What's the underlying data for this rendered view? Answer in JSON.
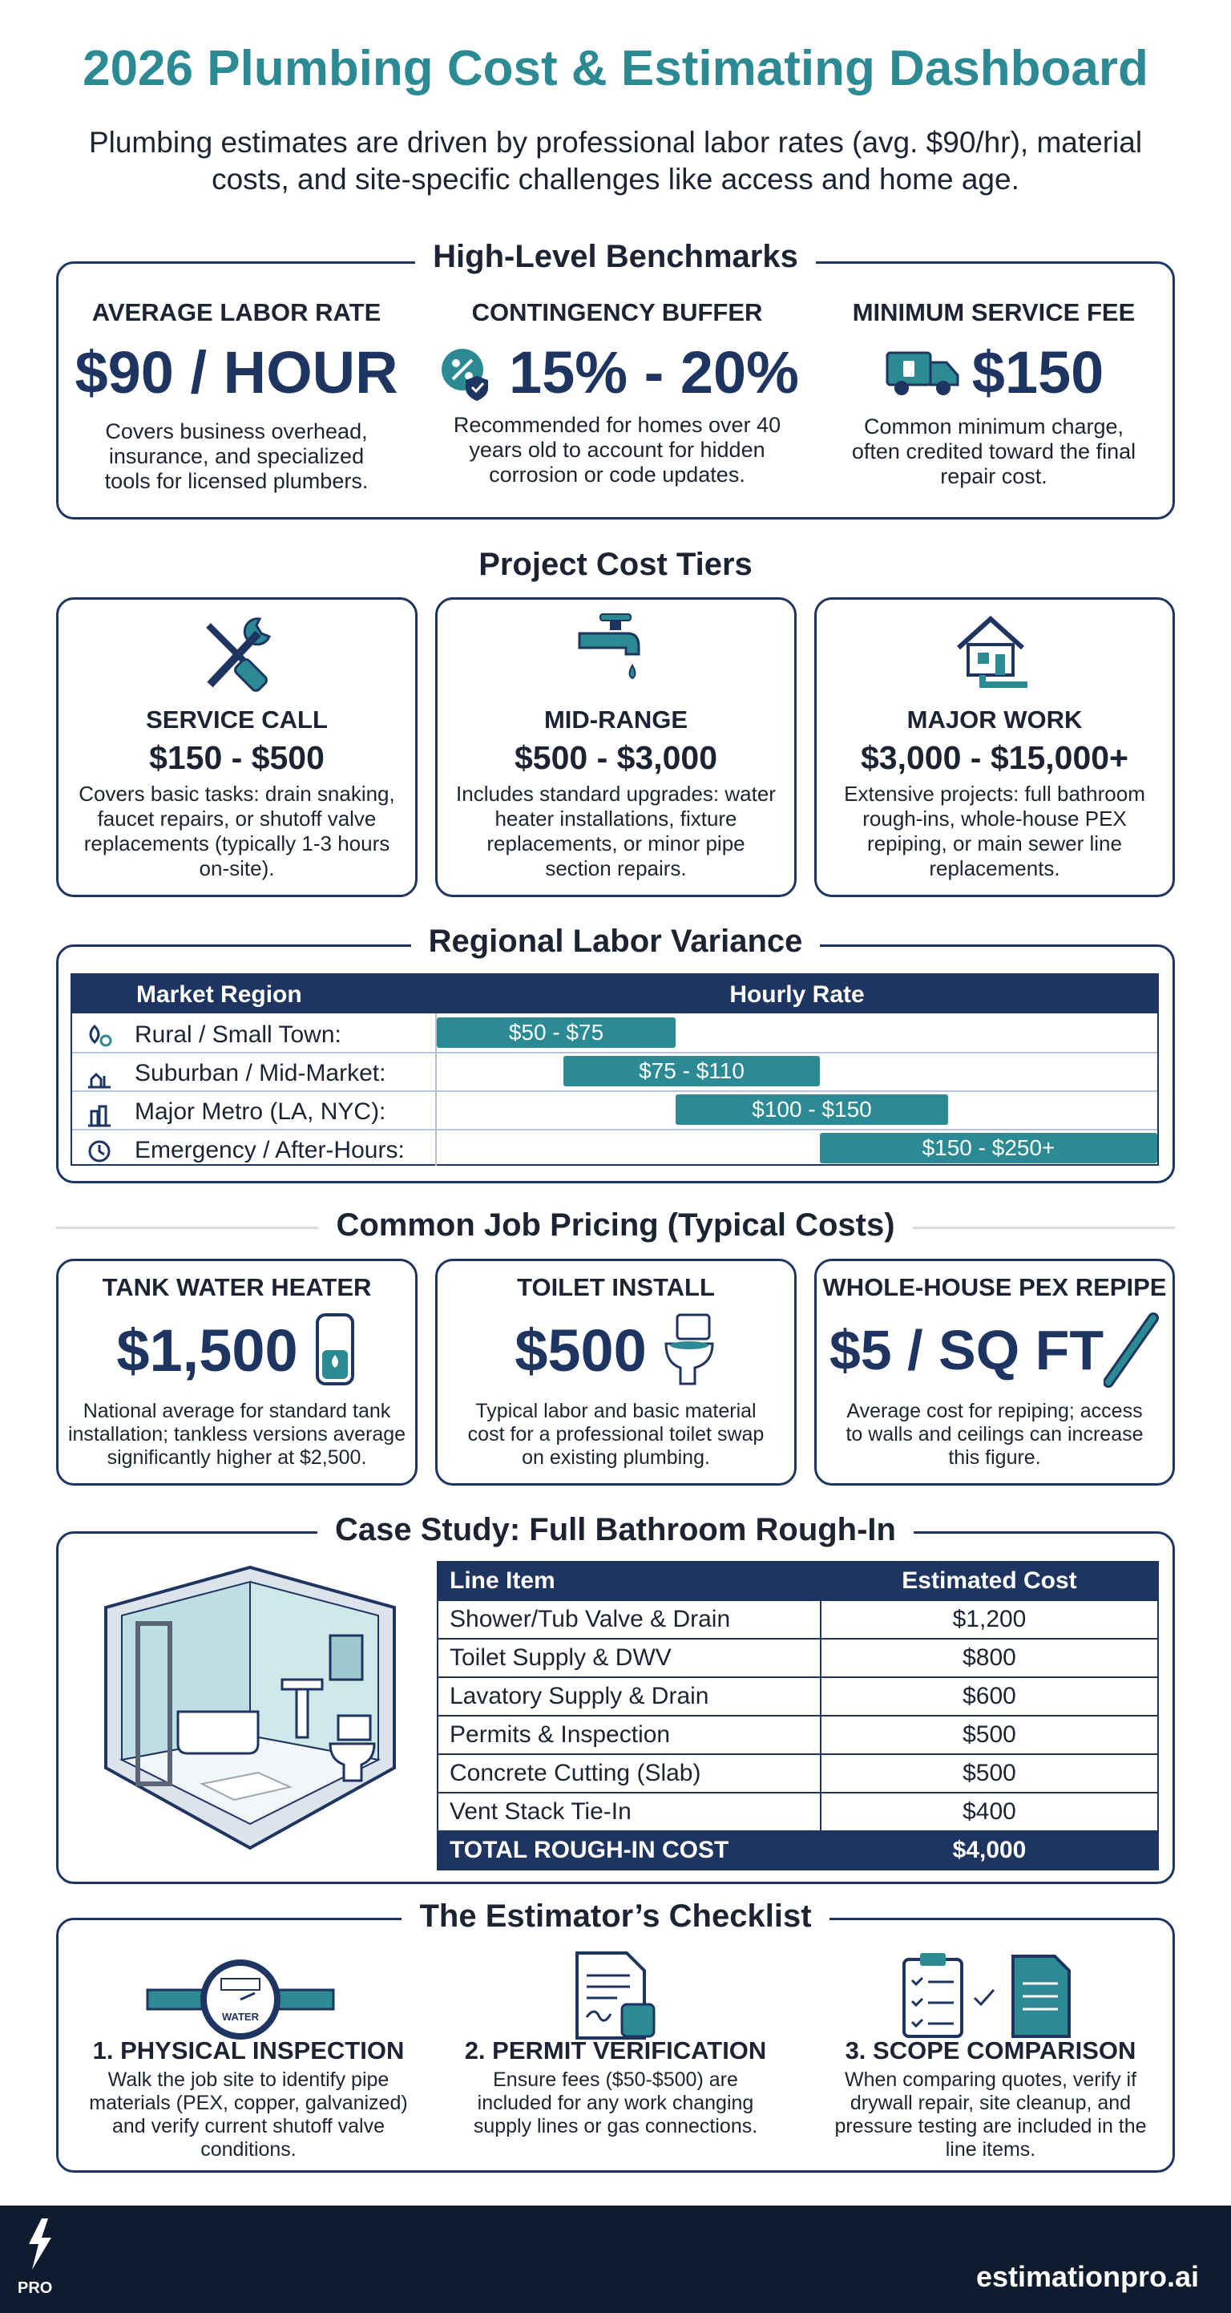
{
  "header": {
    "title": "2026 Plumbing Cost & Estimating Dashboard",
    "subtitle": "Plumbing estimates are driven by professional labor rates (avg. $90/hr), material costs, and site-specific challenges like access and home age."
  },
  "benchmarks": {
    "heading": "High-Level Benchmarks",
    "cards": [
      {
        "label": "AVERAGE LABOR RATE",
        "value": "$90 / HOUR",
        "text": "Covers business overhead, insurance, and specialized tools for licensed plumbers."
      },
      {
        "label": "CONTINGENCY BUFFER",
        "value": "15% - 20%",
        "text": "Recommended for homes over 40 years old to account for hidden corrosion or code updates."
      },
      {
        "label": "MINIMUM SERVICE FEE",
        "value": "$150",
        "text": "Common minimum charge, often credited toward the final repair cost."
      }
    ]
  },
  "tiers": {
    "heading": "Project Cost Tiers",
    "cards": [
      {
        "label": "SERVICE CALL",
        "range": "$150 - $500",
        "text": "Covers basic tasks: drain snaking, faucet repairs, or shutoff valve replacements (typically 1-3 hours on-site)."
      },
      {
        "label": "MID-RANGE",
        "range": "$500 - $3,000",
        "text": "Includes standard upgrades: water heater installations, fixture replacements, or minor pipe section repairs."
      },
      {
        "label": "MAJOR WORK",
        "range": "$3,000 - $15,000+",
        "text": "Extensive projects: full bathroom rough-ins, whole-house PEX repiping, or main sewer line replacements."
      }
    ]
  },
  "regional": {
    "heading": "Regional Labor Variance",
    "columns": [
      "Market Region",
      "Hourly Rate"
    ],
    "rows": [
      {
        "region": "Rural / Small Town:",
        "rate": "$50 - $75"
      },
      {
        "region": "Suburban / Mid-Market:",
        "rate": "$75 - $110"
      },
      {
        "region": "Major Metro (LA, NYC):",
        "rate": "$100 - $150"
      },
      {
        "region": "Emergency / After-Hours:",
        "rate": "$150 - $250+"
      }
    ]
  },
  "jobs": {
    "heading": "Common Job Pricing (Typical Costs)",
    "cards": [
      {
        "label": "TANK WATER HEATER",
        "value": "$1,500",
        "text": "National average for standard tank installation; tankless versions average significantly higher at $2,500."
      },
      {
        "label": "TOILET INSTALL",
        "value": "$500",
        "text": "Typical labor and basic material cost for a professional toilet swap on existing plumbing."
      },
      {
        "label": "WHOLE-HOUSE PEX REPIPE",
        "value": "$5 / SQ FT",
        "text": "Average cost for repiping; access to walls and ceilings can increase this figure."
      }
    ]
  },
  "case_study": {
    "heading": "Case Study: Full Bathroom Rough-In",
    "columns": [
      "Line Item",
      "Estimated Cost"
    ],
    "rows": [
      [
        "Shower/Tub Valve & Drain",
        "$1,200"
      ],
      [
        "Toilet Supply & DWV",
        "$800"
      ],
      [
        "Lavatory Supply & Drain",
        "$600"
      ],
      [
        "Permits & Inspection",
        "$500"
      ],
      [
        "Concrete Cutting (Slab)",
        "$500"
      ],
      [
        "Vent Stack Tie-In",
        "$400"
      ]
    ],
    "total": [
      "TOTAL ROUGH-IN COST",
      "$4,000"
    ]
  },
  "checklist": {
    "heading": "The Estimator’s Checklist",
    "items": [
      {
        "title": "1. PHYSICAL INSPECTION",
        "text": "Walk the job site to identify pipe materials (PEX, copper, galvanized) and verify current shutoff valve conditions.",
        "icon_text": "WATER"
      },
      {
        "title": "2. PERMIT VERIFICATION",
        "text": "Ensure fees ($50-$500) are included for any work changing supply lines or gas connections."
      },
      {
        "title": "3. SCOPE COMPARISON",
        "text": "When comparing quotes, verify if drywall repair, site cleanup, and pressure testing are included in the line items."
      }
    ]
  },
  "footer": {
    "logo_text": "PRO",
    "brand": "estimationpro.ai"
  }
}
